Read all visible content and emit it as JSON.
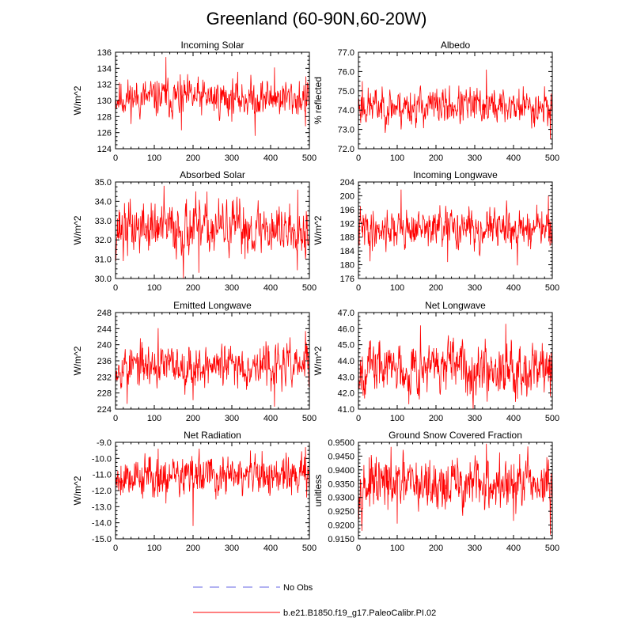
{
  "figure": {
    "title": "Greenland (60-90N,60-20W)"
  },
  "legend": [
    {
      "label": "No Obs",
      "color": "#9999ee",
      "style": "dashed"
    },
    {
      "label": "b.e21.B1850.f19_g17.PaleoCalibr.PI.02",
      "color": "#ff0000",
      "style": "solid"
    }
  ],
  "chart_data": [
    {
      "type": "line",
      "title": "Incoming Solar",
      "ylabel": "W/m^2",
      "xlim": [
        0,
        500
      ],
      "ylim": [
        124,
        136
      ],
      "xticks": [
        "0",
        "100",
        "200",
        "300",
        "400",
        "500"
      ],
      "yticks": [
        "124",
        "126",
        "128",
        "130",
        "132",
        "134",
        "136"
      ],
      "mean": 130.3,
      "sd": 1.1,
      "seed": 11,
      "series": [
        {
          "name": "b.e21.B1850.f19_g17.PaleoCalibr.PI.02",
          "color": "#ff0000",
          "points": [
            [
              130,
              135.4
            ],
            [
              410,
              134.1
            ],
            [
              360,
              125.6
            ],
            [
              170,
              126.3
            ],
            [
              490,
              126.8
            ]
          ]
        }
      ]
    },
    {
      "type": "line",
      "title": "Albedo",
      "ylabel": "% reflected",
      "xlim": [
        0,
        500
      ],
      "ylim": [
        72.0,
        77.0
      ],
      "xticks": [
        "0",
        "100",
        "200",
        "300",
        "400",
        "500"
      ],
      "yticks": [
        "72.0",
        "73.0",
        "74.0",
        "75.0",
        "76.0",
        "77.0"
      ],
      "mean": 74.2,
      "sd": 0.45,
      "seed": 23,
      "series": [
        {
          "name": "b.e21.B1850.f19_g17.PaleoCalibr.PI.02",
          "color": "#ff0000",
          "points": [
            [
              330,
              76.1
            ],
            [
              10,
              75.5
            ],
            [
              495,
              72.5
            ],
            [
              110,
              73.0
            ]
          ]
        }
      ]
    },
    {
      "type": "line",
      "title": "Absorbed Solar",
      "ylabel": "W/m^2",
      "xlim": [
        0,
        500
      ],
      "ylim": [
        30.0,
        35.0
      ],
      "xticks": [
        "0",
        "100",
        "200",
        "300",
        "400",
        "500"
      ],
      "yticks": [
        "30.0",
        "31.0",
        "32.0",
        "33.0",
        "34.0",
        "35.0"
      ],
      "mean": 32.6,
      "sd": 0.65,
      "seed": 37,
      "series": [
        {
          "name": "b.e21.B1850.f19_g17.PaleoCalibr.PI.02",
          "color": "#ff0000",
          "points": [
            [
              125,
              34.8
            ],
            [
              175,
              30.0
            ],
            [
              215,
              30.3
            ],
            [
              20,
              30.9
            ],
            [
              470,
              34.6
            ]
          ]
        }
      ]
    },
    {
      "type": "line",
      "title": "Incoming Longwave",
      "ylabel": "W/m^2",
      "xlim": [
        0,
        500
      ],
      "ylim": [
        176,
        204
      ],
      "xticks": [
        "0",
        "100",
        "200",
        "300",
        "400",
        "500"
      ],
      "yticks": [
        "176",
        "180",
        "184",
        "188",
        "192",
        "196",
        "200",
        "204"
      ],
      "mean": 190.5,
      "sd": 2.6,
      "seed": 41,
      "series": [
        {
          "name": "b.e21.B1850.f19_g17.PaleoCalibr.PI.02",
          "color": "#ff0000",
          "points": [
            [
              110,
              201.8
            ],
            [
              490,
              200.0
            ],
            [
              410,
              179.8
            ],
            [
              230,
              180.8
            ],
            [
              30,
              181.0
            ]
          ]
        }
      ]
    },
    {
      "type": "line",
      "title": "Emitted Longwave",
      "ylabel": "W/m^2",
      "xlim": [
        0,
        500
      ],
      "ylim": [
        224,
        248
      ],
      "xticks": [
        "0",
        "100",
        "200",
        "300",
        "400",
        "500"
      ],
      "yticks": [
        "224",
        "228",
        "232",
        "236",
        "240",
        "244",
        "248"
      ],
      "mean": 234.8,
      "sd": 2.4,
      "seed": 53,
      "series": [
        {
          "name": "b.e21.B1850.f19_g17.PaleoCalibr.PI.02",
          "color": "#ff0000",
          "points": [
            [
              110,
              244.1
            ],
            [
              490,
              243.4
            ],
            [
              410,
              224.6
            ],
            [
              30,
              225.3
            ],
            [
              200,
              226.2
            ]
          ]
        }
      ]
    },
    {
      "type": "line",
      "title": "Net Longwave",
      "ylabel": "W/m^2",
      "xlim": [
        0,
        500
      ],
      "ylim": [
        41.0,
        47.0
      ],
      "xticks": [
        "0",
        "100",
        "200",
        "300",
        "400",
        "500"
      ],
      "yticks": [
        "41.0",
        "42.0",
        "43.0",
        "44.0",
        "45.0",
        "46.0",
        "47.0"
      ],
      "mean": 43.6,
      "sd": 0.75,
      "seed": 67,
      "series": [
        {
          "name": "b.e21.B1850.f19_g17.PaleoCalibr.PI.02",
          "color": "#ff0000",
          "points": [
            [
              380,
              46.3
            ],
            [
              160,
              46.2
            ],
            [
              495,
              41.8
            ],
            [
              130,
              41.3
            ]
          ]
        }
      ]
    },
    {
      "type": "line",
      "title": "Net Radiation",
      "ylabel": "W/m^2",
      "xlim": [
        0,
        500
      ],
      "ylim": [
        -15.0,
        -9.0
      ],
      "xticks": [
        "0",
        "100",
        "200",
        "300",
        "400",
        "500"
      ],
      "yticks": [
        "-15.0",
        "-14.0",
        "-13.0",
        "-12.0",
        "-11.0",
        "-10.0",
        "-9.0"
      ],
      "mean": -11.1,
      "sd": 0.6,
      "seed": 79,
      "series": [
        {
          "name": "b.e21.B1850.f19_g17.PaleoCalibr.PI.02",
          "color": "#ff0000",
          "points": [
            [
              200,
              -14.2
            ],
            [
              490,
              -9.3
            ],
            [
              110,
              -9.4
            ],
            [
              130,
              -12.8
            ]
          ]
        }
      ]
    },
    {
      "type": "line",
      "title": "Ground Snow Covered Fraction",
      "ylabel": "unitless",
      "xlim": [
        0,
        500
      ],
      "ylim": [
        0.915,
        0.95
      ],
      "xticks": [
        "0",
        "100",
        "200",
        "300",
        "400",
        "500"
      ],
      "yticks": [
        "0.9150",
        "0.9200",
        "0.9250",
        "0.9300",
        "0.9350",
        "0.9400",
        "0.9450",
        "0.9500"
      ],
      "mean": 0.9345,
      "sd": 0.0045,
      "seed": 97,
      "series": [
        {
          "name": "b.e21.B1850.f19_g17.PaleoCalibr.PI.02",
          "color": "#ff0000",
          "points": [
            [
              330,
              0.9495
            ],
            [
              400,
              0.9485
            ],
            [
              495,
              0.9165
            ],
            [
              400,
              0.9215
            ],
            [
              100,
              0.9205
            ]
          ]
        }
      ]
    }
  ]
}
